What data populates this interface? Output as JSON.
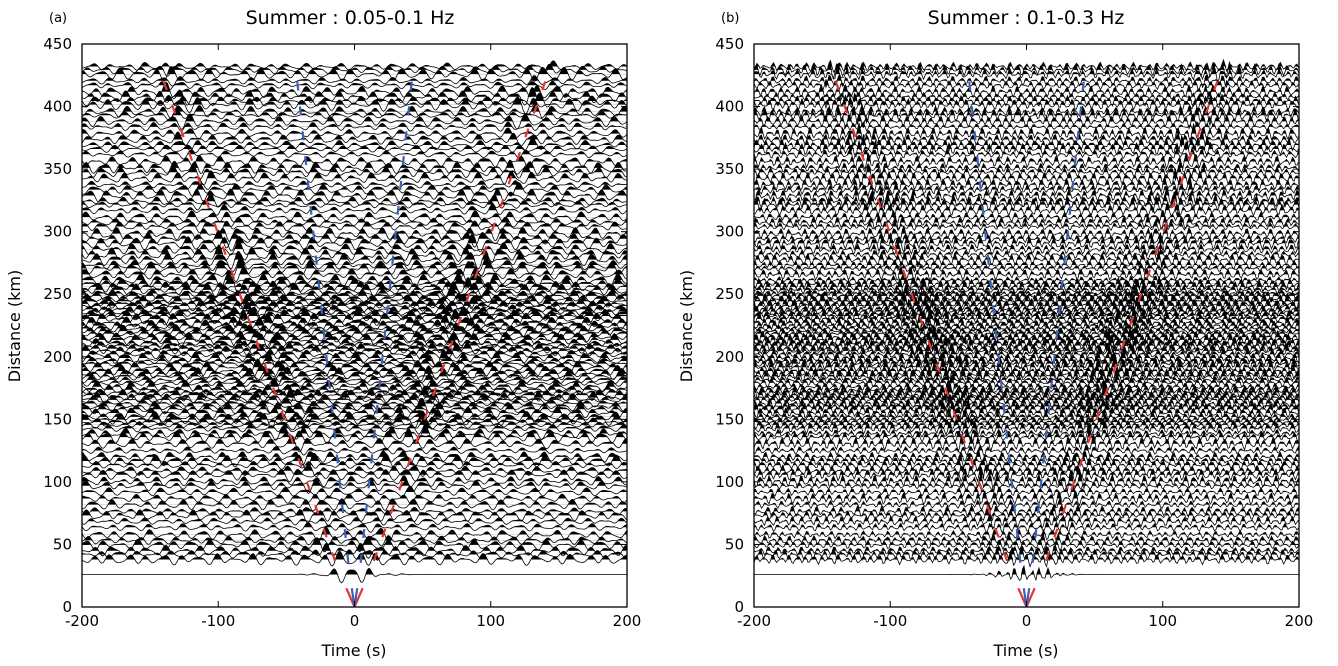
{
  "colors": {
    "red_picks": "#e8352f",
    "blue_picks": "#3d5fb6",
    "trace": "#000000",
    "axis": "#000000"
  },
  "chart_data": [
    {
      "type": "wiggle",
      "panel_label": "(a)",
      "title": "Summer : 0.05-0.1 Hz",
      "xlabel": "Time (s)",
      "ylabel": "Distance (km)",
      "xlim": [
        -200,
        200
      ],
      "ylim": [
        0,
        450
      ],
      "xticks": [
        -200,
        -100,
        0,
        100,
        200
      ],
      "xtick_labels": [
        "-200",
        "-100",
        "0",
        "100",
        "200"
      ],
      "yticks": [
        0,
        50,
        100,
        150,
        200,
        250,
        300,
        350,
        400,
        450
      ],
      "ytick_labels": [
        "0",
        "50",
        "100",
        "150",
        "200",
        "250",
        "300",
        "350",
        "400",
        "450"
      ],
      "period_s": 13,
      "pick_lines": [
        {
          "name": "red",
          "points": [
            [
              -140,
              420
            ],
            [
              -12,
              30
            ]
          ],
          "mirror": true
        },
        {
          "name": "blue",
          "points": [
            [
              -42,
              420
            ],
            [
              -4,
              30
            ]
          ],
          "mirror": true
        }
      ]
    },
    {
      "type": "wiggle",
      "panel_label": "(b)",
      "title": "Summer : 0.1-0.3 Hz",
      "xlabel": "Time (s)",
      "ylabel": "Distance (km)",
      "xlim": [
        -200,
        200
      ],
      "ylim": [
        0,
        450
      ],
      "xticks": [
        -200,
        -100,
        0,
        100,
        200
      ],
      "xtick_labels": [
        "-200",
        "-100",
        "0",
        "100",
        "200"
      ],
      "yticks": [
        0,
        50,
        100,
        150,
        200,
        250,
        300,
        350,
        400,
        450
      ],
      "ytick_labels": [
        "0",
        "50",
        "100",
        "150",
        "200",
        "250",
        "300",
        "350",
        "400",
        "450"
      ],
      "period_s": 6,
      "pick_lines": [
        {
          "name": "red",
          "points": [
            [
              -140,
              420
            ],
            [
              -12,
              30
            ]
          ],
          "mirror": true
        },
        {
          "name": "blue",
          "points": [
            [
              -42,
              420
            ],
            [
              -4,
              30
            ]
          ],
          "mirror": true
        }
      ]
    }
  ]
}
